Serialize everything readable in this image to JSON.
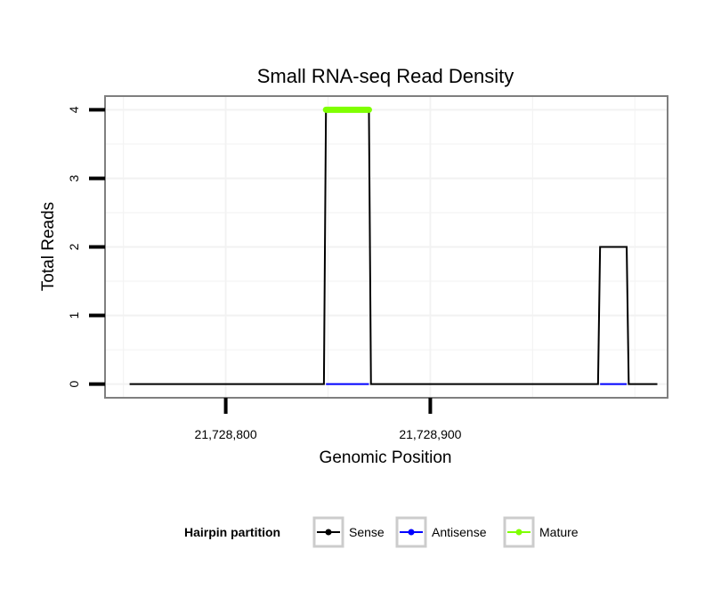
{
  "chart_data": {
    "type": "line",
    "title": "Small RNA-seq Read Density",
    "xlabel": "Genomic Position",
    "ylabel": "Total Reads",
    "xlim": [
      21728741,
      21729016
    ],
    "ylim": [
      -0.2,
      4.2
    ],
    "x_ticks": [
      {
        "value": 21728800,
        "label": "21,728,800"
      },
      {
        "value": 21728900,
        "label": "21,728,900"
      }
    ],
    "y_ticks": [
      {
        "value": 0,
        "label": "0"
      },
      {
        "value": 1,
        "label": "1"
      },
      {
        "value": 2,
        "label": "2"
      },
      {
        "value": 3,
        "label": "3"
      },
      {
        "value": 4,
        "label": "4"
      }
    ],
    "grid": true,
    "legend": {
      "title": "Hairpin partition",
      "placement": "bottom",
      "entries": [
        {
          "name": "Sense",
          "color": "#000000"
        },
        {
          "name": "Antisense",
          "color": "#0000ff"
        },
        {
          "name": "Mature",
          "color": "#7fff00"
        }
      ]
    },
    "series": [
      {
        "name": "Sense",
        "color": "#000000",
        "x": [
          21728753,
          21728848,
          21728849,
          21728870,
          21728871,
          21728982,
          21728983,
          21728996,
          21728997,
          21729011
        ],
        "y": [
          0,
          0,
          4,
          4,
          0,
          0,
          2,
          2,
          0,
          0
        ]
      },
      {
        "name": "Antisense",
        "color": "#0000ff",
        "x": [
          21728849,
          21728870,
          21728983,
          21728996
        ],
        "y": [
          0,
          0,
          0,
          0
        ],
        "segments": [
          [
            0,
            1
          ],
          [
            2,
            3
          ]
        ]
      },
      {
        "name": "Mature",
        "color": "#7fff00",
        "x": [
          21728849,
          21728870
        ],
        "y": [
          4,
          4
        ]
      }
    ]
  }
}
